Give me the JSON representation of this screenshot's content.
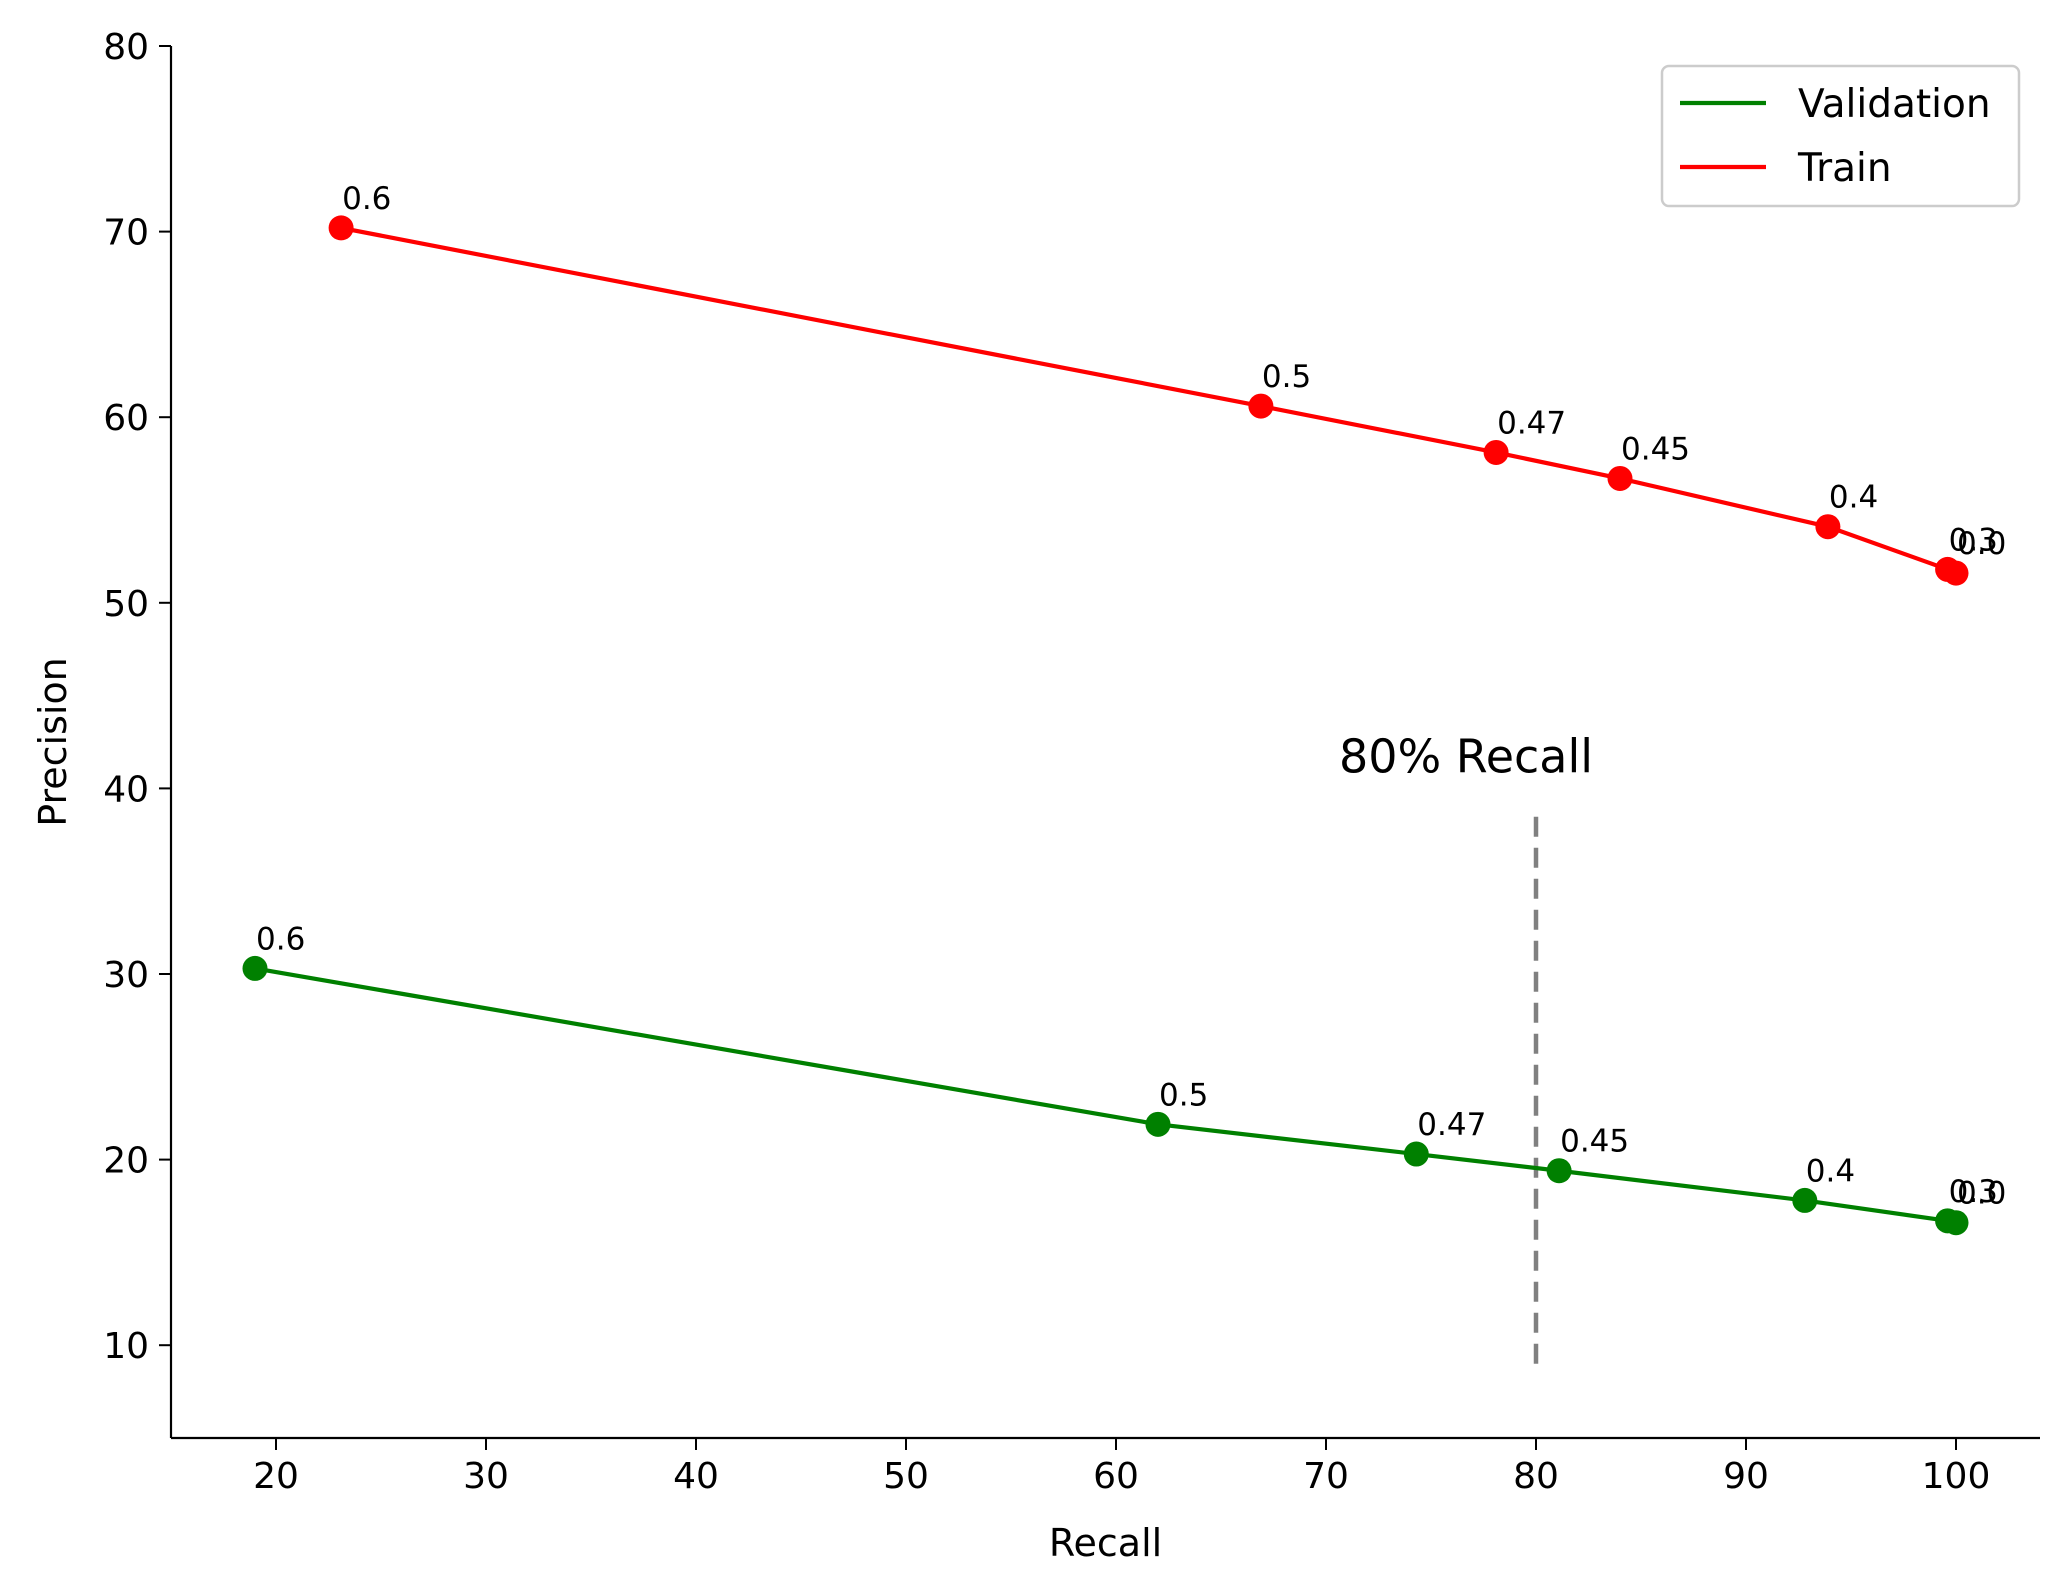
{
  "chart_data": {
    "type": "line",
    "xlabel": "Recall",
    "ylabel": "Precision",
    "xlim": [
      15,
      104
    ],
    "ylim": [
      5,
      80
    ],
    "xticks": [
      20,
      30,
      40,
      50,
      60,
      70,
      80,
      90,
      100
    ],
    "yticks": [
      10,
      20,
      30,
      40,
      50,
      60,
      70,
      80
    ],
    "grid": false,
    "legend_position": "top-right",
    "series": [
      {
        "name": "Validation",
        "color": "#008000",
        "x": [
          19,
          62,
          74.3,
          81.1,
          92.8,
          99.6,
          100
        ],
        "y": [
          30.3,
          21.9,
          20.3,
          19.4,
          17.8,
          16.7,
          16.6
        ],
        "labels": [
          "0.6",
          "0.5",
          "0.47",
          "0.45",
          "0.4",
          "0.3",
          "0.0"
        ]
      },
      {
        "name": "Train",
        "color": "#ff0000",
        "x": [
          23.1,
          66.9,
          78.1,
          84,
          93.9,
          99.6,
          100
        ],
        "y": [
          70.2,
          60.6,
          58.1,
          56.7,
          54.1,
          51.8,
          51.6
        ],
        "labels": [
          "0.6",
          "0.5",
          "0.47",
          "0.45",
          "0.4",
          "0.3",
          "0.0"
        ]
      }
    ],
    "annotations": [
      {
        "text": "80% Recall",
        "x": 80,
        "y_from": 9,
        "y_to": 38.7,
        "color": "#808080",
        "style": "dashed"
      }
    ]
  }
}
